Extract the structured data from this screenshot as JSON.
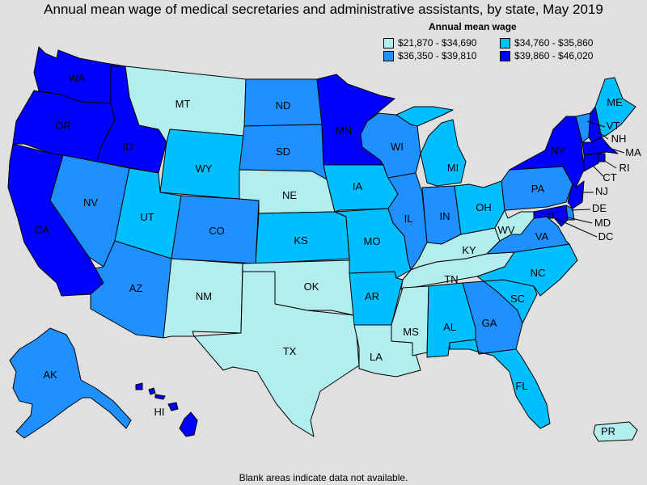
{
  "title": "Annual mean wage of medical secretaries and administrative assistants, by state, May 2019",
  "legend": {
    "title": "Annual mean wage",
    "items": [
      {
        "label": "$21,870 - $34,690",
        "color": "#b3eeee"
      },
      {
        "label": "$34,760 - $35,860",
        "color": "#00bfff"
      },
      {
        "label": "$36,350 - $39,810",
        "color": "#1e90ff"
      },
      {
        "label": "$39,860 - $46,020",
        "color": "#0000ff"
      }
    ]
  },
  "footnote": "Blank areas indicate data not available.",
  "states": {
    "WA": {
      "label": "WA",
      "class": 3
    },
    "OR": {
      "label": "OR",
      "class": 3
    },
    "CA": {
      "label": "CA",
      "class": 3
    },
    "ID": {
      "label": "ID",
      "class": 3
    },
    "NV": {
      "label": "NV",
      "class": 2
    },
    "MT": {
      "label": "MT",
      "class": 0
    },
    "WY": {
      "label": "WY",
      "class": 1
    },
    "UT": {
      "label": "UT",
      "class": 1
    },
    "AZ": {
      "label": "AZ",
      "class": 2
    },
    "CO": {
      "label": "CO",
      "class": 2
    },
    "NM": {
      "label": "NM",
      "class": 0
    },
    "ND": {
      "label": "ND",
      "class": 2
    },
    "SD": {
      "label": "SD",
      "class": 2
    },
    "NE": {
      "label": "NE",
      "class": 0
    },
    "KS": {
      "label": "KS",
      "class": 1
    },
    "OK": {
      "label": "OK",
      "class": 0
    },
    "TX": {
      "label": "TX",
      "class": 0
    },
    "MN": {
      "label": "MN",
      "class": 3
    },
    "IA": {
      "label": "IA",
      "class": 1
    },
    "MO": {
      "label": "MO",
      "class": 1
    },
    "AR": {
      "label": "AR",
      "class": 1
    },
    "LA": {
      "label": "LA",
      "class": 0
    },
    "WI": {
      "label": "WI",
      "class": 2
    },
    "IL": {
      "label": "IL",
      "class": 2
    },
    "MI": {
      "label": "MI",
      "class": 1
    },
    "IN": {
      "label": "IN",
      "class": 2
    },
    "OH": {
      "label": "OH",
      "class": 1
    },
    "KY": {
      "label": "KY",
      "class": 0
    },
    "TN": {
      "label": "TN",
      "class": 0
    },
    "MS": {
      "label": "MS",
      "class": 0
    },
    "AL": {
      "label": "AL",
      "class": 1
    },
    "GA": {
      "label": "GA",
      "class": 2
    },
    "FL": {
      "label": "FL",
      "class": 1
    },
    "SC": {
      "label": "SC",
      "class": 1
    },
    "NC": {
      "label": "NC",
      "class": 1
    },
    "VA": {
      "label": "VA",
      "class": 2
    },
    "WV": {
      "label": "WV",
      "class": 0
    },
    "PA": {
      "label": "PA",
      "class": 2
    },
    "NY": {
      "label": "NY",
      "class": 3
    },
    "VT": {
      "label": "VT",
      "class": 2
    },
    "NH": {
      "label": "NH",
      "class": 3
    },
    "ME": {
      "label": "ME",
      "class": 1
    },
    "MA": {
      "label": "MA",
      "class": 3
    },
    "RI": {
      "label": "RI",
      "class": 3
    },
    "CT": {
      "label": "CT",
      "class": 3
    },
    "NJ": {
      "label": "NJ",
      "class": 3
    },
    "DE": {
      "label": "DE",
      "class": 2
    },
    "MD": {
      "label": "MD",
      "class": 3
    },
    "DC": {
      "label": "DC",
      "class": 3
    },
    "AK": {
      "label": "AK",
      "class": 2
    },
    "HI": {
      "label": "HI",
      "class": 3
    },
    "PR": {
      "label": "PR",
      "class": 0
    }
  }
}
